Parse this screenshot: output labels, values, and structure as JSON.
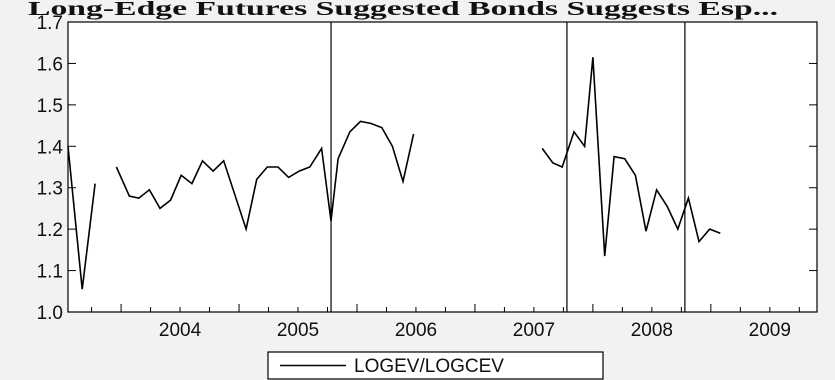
{
  "top_caption": "Long-Edge Futures Suggested Bonds Suggests Esp...",
  "chart_data": {
    "type": "line",
    "title": "",
    "xlabel": "",
    "ylabel": "",
    "ylim": [
      1.0,
      1.7
    ],
    "y_ticks": [
      1.0,
      1.1,
      1.2,
      1.3,
      1.4,
      1.5,
      1.6,
      1.7
    ],
    "y_tick_labels": [
      "1.0",
      "1.1",
      "1.2",
      "1.3",
      "1.4",
      "1.5",
      "1.6",
      "1.7"
    ],
    "xlim": [
      2003.55,
      2009.9
    ],
    "x_ticks": [
      2004,
      2005,
      2006,
      2007,
      2008,
      2009
    ],
    "x_tick_labels": [
      "2004",
      "2005",
      "2006",
      "2007",
      "2008",
      "2009"
    ],
    "grid": false,
    "legend": "bottom-center",
    "reference_lines_x": [
      2005.78,
      2007.78,
      2008.78
    ],
    "series": [
      {
        "name": "LOGEV/LOGCEV",
        "color": "#000000",
        "segments": [
          [
            [
              2003.55,
              1.4
            ],
            [
              2003.67,
              1.055
            ],
            [
              2003.78,
              1.31
            ]
          ],
          [
            [
              2003.96,
              1.35
            ],
            [
              2004.07,
              1.28
            ],
            [
              2004.15,
              1.275
            ],
            [
              2004.24,
              1.295
            ],
            [
              2004.33,
              1.25
            ],
            [
              2004.42,
              1.27
            ],
            [
              2004.51,
              1.33
            ],
            [
              2004.6,
              1.31
            ],
            [
              2004.69,
              1.365
            ],
            [
              2004.78,
              1.34
            ],
            [
              2004.87,
              1.365
            ],
            [
              2005.06,
              1.2
            ],
            [
              2005.15,
              1.32
            ],
            [
              2005.24,
              1.35
            ],
            [
              2005.33,
              1.35
            ],
            [
              2005.42,
              1.325
            ],
            [
              2005.51,
              1.34
            ],
            [
              2005.6,
              1.35
            ],
            [
              2005.7,
              1.395
            ],
            [
              2005.78,
              1.22
            ],
            [
              2005.84,
              1.37
            ],
            [
              2005.94,
              1.435
            ],
            [
              2006.03,
              1.46
            ],
            [
              2006.12,
              1.455
            ],
            [
              2006.21,
              1.445
            ],
            [
              2006.3,
              1.4
            ],
            [
              2006.39,
              1.315
            ],
            [
              2006.48,
              1.43
            ]
          ],
          [
            [
              2007.57,
              1.395
            ],
            [
              2007.66,
              1.36
            ],
            [
              2007.74,
              1.35
            ],
            [
              2007.84,
              1.435
            ],
            [
              2007.93,
              1.4
            ],
            [
              2008.0,
              1.615
            ],
            [
              2008.1,
              1.135
            ],
            [
              2008.18,
              1.375
            ],
            [
              2008.27,
              1.37
            ],
            [
              2008.36,
              1.33
            ],
            [
              2008.45,
              1.195
            ],
            [
              2008.54,
              1.295
            ],
            [
              2008.63,
              1.255
            ],
            [
              2008.72,
              1.2
            ],
            [
              2008.81,
              1.275
            ],
            [
              2008.9,
              1.17
            ],
            [
              2008.99,
              1.2
            ],
            [
              2009.08,
              1.19
            ]
          ]
        ]
      }
    ]
  }
}
